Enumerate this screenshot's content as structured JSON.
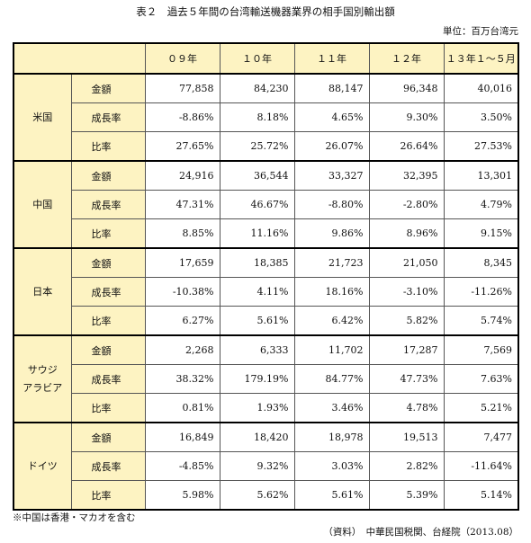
{
  "title": "表２　過去５年間の台湾輸送機器業界の相手国別輸出額",
  "unit": "単位：百万台湾元",
  "table": {
    "header": [
      "０９年",
      "１０年",
      "１１年",
      "１２年",
      "１３年１～５月"
    ],
    "groups": [
      {
        "country": "米国",
        "rows": [
          {
            "metric": "金額",
            "values": [
              "77,858",
              "84,230",
              "88,147",
              "96,348",
              "40,016"
            ]
          },
          {
            "metric": "成長率",
            "values": [
              "-8.86%",
              "8.18%",
              "4.65%",
              "9.30%",
              "3.50%"
            ]
          },
          {
            "metric": "比率",
            "values": [
              "27.65%",
              "25.72%",
              "26.07%",
              "26.64%",
              "27.53%"
            ]
          }
        ]
      },
      {
        "country": "中国",
        "rows": [
          {
            "metric": "金額",
            "values": [
              "24,916",
              "36,544",
              "33,327",
              "32,395",
              "13,301"
            ]
          },
          {
            "metric": "成長率",
            "values": [
              "47.31%",
              "46.67%",
              "-8.80%",
              "-2.80%",
              "4.79%"
            ]
          },
          {
            "metric": "比率",
            "values": [
              "8.85%",
              "11.16%",
              "9.86%",
              "8.96%",
              "9.15%"
            ]
          }
        ]
      },
      {
        "country": "日本",
        "rows": [
          {
            "metric": "金額",
            "values": [
              "17,659",
              "18,385",
              "21,723",
              "21,050",
              "8,345"
            ]
          },
          {
            "metric": "成長率",
            "values": [
              "-10.38%",
              "4.11%",
              "18.16%",
              "-3.10%",
              "-11.26%"
            ]
          },
          {
            "metric": "比率",
            "values": [
              "6.27%",
              "5.61%",
              "6.42%",
              "5.82%",
              "5.74%"
            ]
          }
        ]
      },
      {
        "country": "サウジ\nアラビア",
        "rows": [
          {
            "metric": "金額",
            "values": [
              "2,268",
              "6,333",
              "11,702",
              "17,287",
              "7,569"
            ]
          },
          {
            "metric": "成長率",
            "values": [
              "38.32%",
              "179.19%",
              "84.77%",
              "47.73%",
              "7.63%"
            ]
          },
          {
            "metric": "比率",
            "values": [
              "0.81%",
              "1.93%",
              "3.46%",
              "4.78%",
              "5.21%"
            ]
          }
        ]
      },
      {
        "country": "ドイツ",
        "rows": [
          {
            "metric": "金額",
            "values": [
              "16,849",
              "18,420",
              "18,978",
              "19,513",
              "7,477"
            ]
          },
          {
            "metric": "成長率",
            "values": [
              "-4.85%",
              "9.32%",
              "3.03%",
              "2.82%",
              "-11.64%"
            ]
          },
          {
            "metric": "比率",
            "values": [
              "5.98%",
              "5.62%",
              "5.61%",
              "5.39%",
              "5.14%"
            ]
          }
        ]
      }
    ]
  },
  "note": "※中国は香港・マカオを含む",
  "source": "（資料）　中華民国税関、台経院（2013.08）"
}
